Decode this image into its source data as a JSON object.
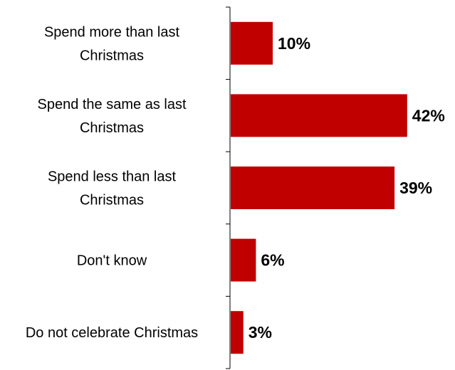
{
  "chart_data": {
    "type": "bar",
    "orientation": "horizontal",
    "categories": [
      [
        "Spend more than last",
        "Christmas"
      ],
      [
        "Spend the same as last",
        "Christmas"
      ],
      [
        "Spend less than last",
        "Christmas"
      ],
      [
        "Don't know"
      ],
      [
        "Do not celebrate Christmas"
      ]
    ],
    "values": [
      10,
      42,
      39,
      6,
      3
    ],
    "value_labels": [
      "10%",
      "42%",
      "39%",
      "6%",
      "3%"
    ],
    "unit": "%",
    "xlim": [
      0,
      45
    ],
    "title": "",
    "xlabel": "",
    "ylabel": "",
    "grid": false,
    "legend": "none",
    "bar_color": "#c00000"
  }
}
